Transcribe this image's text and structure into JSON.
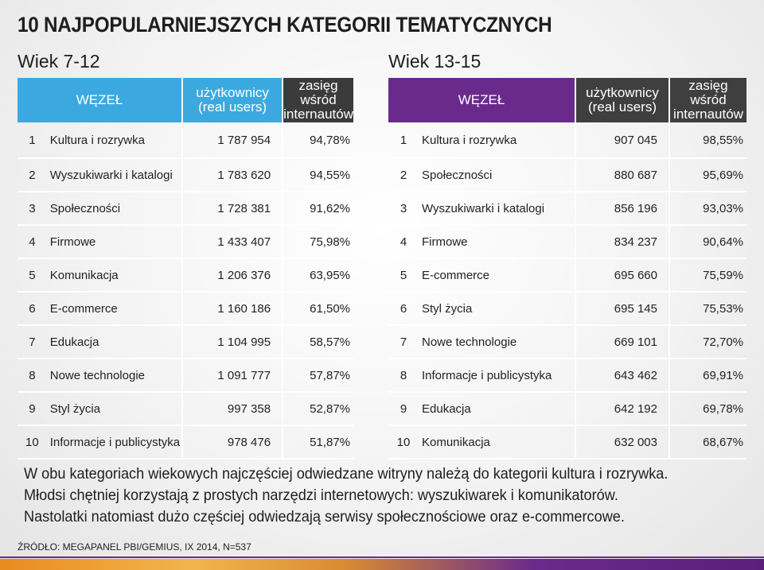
{
  "title": "10 NAJPOPULARNIEJSZYCH KATEGORII TEMATYCZNYCH",
  "colors": {
    "left_header": "#3ba9e0",
    "right_header": "#6a2a8c",
    "dark_header": "#3b3b3c"
  },
  "left": {
    "age": "Wiek 7-12",
    "headers": {
      "node": "WĘZEŁ",
      "users_1": "użytkownicy",
      "users_2": "(real users)",
      "reach_1": "zasięg wśród",
      "reach_2": "internautów"
    },
    "rows": [
      {
        "n": "1",
        "cat": "Kultura i rozrywka",
        "users": "1 787 954",
        "reach": "94,78%"
      },
      {
        "n": "2",
        "cat": "Wyszukiwarki i katalogi",
        "users": "1 783 620",
        "reach": "94,55%"
      },
      {
        "n": "3",
        "cat": "Społeczności",
        "users": "1 728 381",
        "reach": "91,62%"
      },
      {
        "n": "4",
        "cat": "Firmowe",
        "users": "1 433 407",
        "reach": "75,98%"
      },
      {
        "n": "5",
        "cat": "Komunikacja",
        "users": "1 206 376",
        "reach": "63,95%"
      },
      {
        "n": "6",
        "cat": "E-commerce",
        "users": "1 160 186",
        "reach": "61,50%"
      },
      {
        "n": "7",
        "cat": "Edukacja",
        "users": "1 104 995",
        "reach": "58,57%"
      },
      {
        "n": "8",
        "cat": "Nowe technologie",
        "users": "1 091 777",
        "reach": "57,87%"
      },
      {
        "n": "9",
        "cat": "Styl życia",
        "users": "997 358",
        "reach": "52,87%"
      },
      {
        "n": "10",
        "cat": "Informacje i publicystyka",
        "users": "978 476",
        "reach": "51,87%"
      }
    ]
  },
  "right": {
    "age": "Wiek 13-15",
    "headers": {
      "node": "WĘZEŁ",
      "users_1": "użytkownicy",
      "users_2": "(real users)",
      "reach_1": "zasięg wśród",
      "reach_2": "internautów"
    },
    "rows": [
      {
        "n": "1",
        "cat": "Kultura i rozrywka",
        "users": "907 045",
        "reach": "98,55%"
      },
      {
        "n": "2",
        "cat": "Społeczności",
        "users": "880 687",
        "reach": "95,69%"
      },
      {
        "n": "3",
        "cat": "Wyszukiwarki i katalogi",
        "users": "856 196",
        "reach": "93,03%"
      },
      {
        "n": "4",
        "cat": "Firmowe",
        "users": "834 237",
        "reach": "90,64%"
      },
      {
        "n": "5",
        "cat": "E-commerce",
        "users": "695 660",
        "reach": "75,59%"
      },
      {
        "n": "6",
        "cat": "Styl życia",
        "users": "695 145",
        "reach": "75,53%"
      },
      {
        "n": "7",
        "cat": "Nowe technologie",
        "users": "669 101",
        "reach": "72,70%"
      },
      {
        "n": "8",
        "cat": "Informacje i publicystyka",
        "users": "643 462",
        "reach": "69,91%"
      },
      {
        "n": "9",
        "cat": "Edukacja",
        "users": "642 192",
        "reach": "69,78%"
      },
      {
        "n": "10",
        "cat": "Komunikacja",
        "users": "632 003",
        "reach": "68,67%"
      }
    ]
  },
  "summary": [
    "W obu kategoriach wiekowych najczęściej odwiedzane witryny należą do kategorii kultura i rozrywka.",
    "Młodsi chętniej korzystają z prostych narzędzi internetowych: wyszukiwarek i komunikatorów.",
    "Nastolatki natomiast dużo częściej odwiedzają serwisy społecznościowe oraz e-commercowe."
  ],
  "source": "ŹRÓDŁO: MEGAPANEL PBI/GEMIUS, IX 2014, N=537"
}
